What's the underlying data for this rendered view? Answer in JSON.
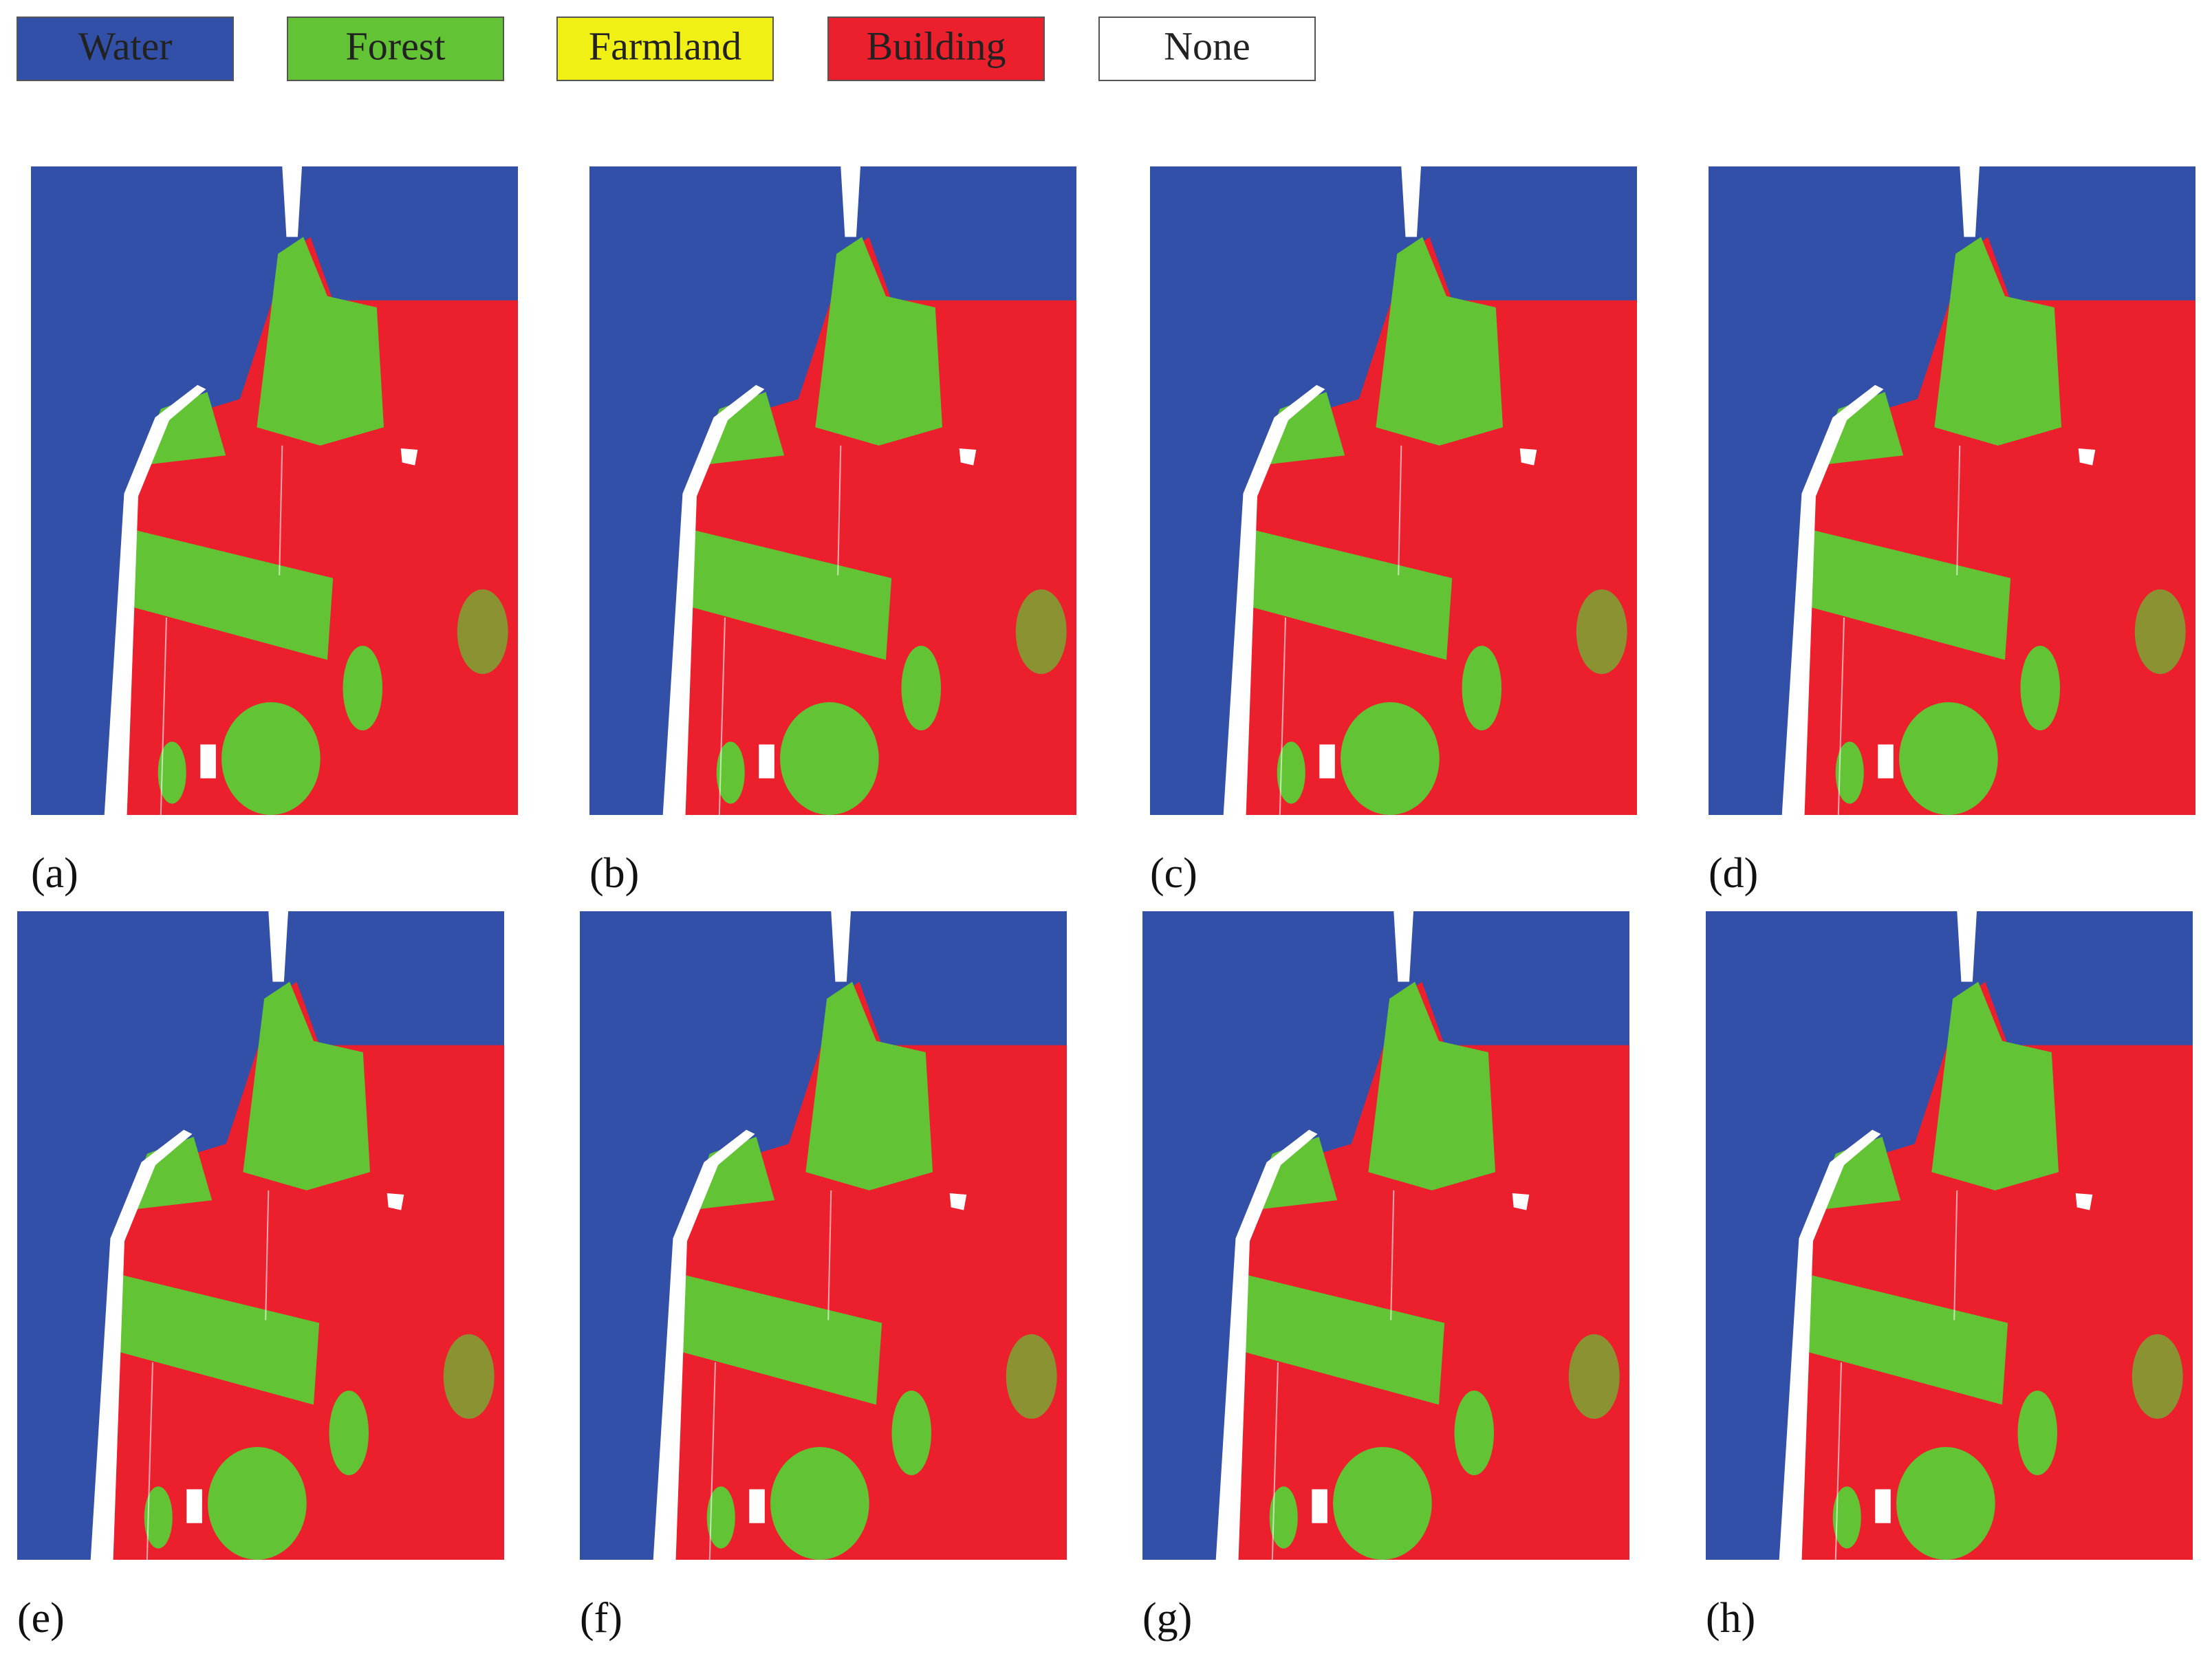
{
  "legend": [
    {
      "label": "Water",
      "color": "#3350a8"
    },
    {
      "label": "Forest",
      "color": "#62c334"
    },
    {
      "label": "Farmland",
      "color": "#f0f014"
    },
    {
      "label": "Building",
      "color": "#ec1f2d"
    },
    {
      "label": "None",
      "color": "#ffffff"
    }
  ],
  "panels": [
    {
      "label": "(a)"
    },
    {
      "label": "(b)"
    },
    {
      "label": "(c)"
    },
    {
      "label": "(d)"
    },
    {
      "label": "(e)"
    },
    {
      "label": "(f)"
    },
    {
      "label": "(g)"
    },
    {
      "label": "(h)"
    }
  ]
}
